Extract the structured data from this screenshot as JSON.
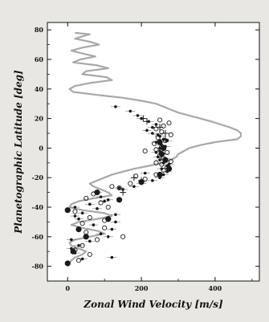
{
  "chart_data": {
    "type": "scatter",
    "title": "",
    "xlabel": "Zonal Wind Velocity [m/s]",
    "ylabel": "Planetographic Latitude [deg]",
    "xlim": [
      -55,
      520
    ],
    "ylim": [
      -90,
      85
    ],
    "x_ticks": [
      0,
      200,
      400
    ],
    "y_ticks": [
      80,
      60,
      40,
      20,
      0,
      -20,
      -40,
      -60,
      -80
    ],
    "grid": false,
    "legend": "none",
    "colors": {
      "profile": "#a8a8a8",
      "markers": "#1a1a1a",
      "frame": "#111111",
      "background": "#ffffff"
    },
    "profile": {
      "lat": [
        78,
        77,
        76,
        74,
        72,
        70,
        68,
        66,
        64,
        62,
        60,
        58,
        56,
        54,
        52,
        50,
        48,
        46,
        44,
        42,
        40,
        38,
        36,
        34,
        32,
        30,
        28,
        26,
        24,
        22,
        20,
        18,
        16,
        14,
        12,
        10,
        8,
        6,
        4,
        2,
        0,
        -2,
        -4,
        -6,
        -8,
        -10,
        -12,
        -14,
        -16,
        -18,
        -20,
        -22,
        -24,
        -26,
        -28,
        -30,
        -32,
        -34,
        -36,
        -38,
        -40,
        -42,
        -44,
        -46,
        -48,
        -50,
        -52,
        -54,
        -56,
        -58,
        -60,
        -62,
        -64,
        -66,
        -68,
        -70,
        -72,
        -74,
        -76,
        -78,
        -80
      ],
      "u": [
        20,
        60,
        45,
        20,
        60,
        85,
        40,
        10,
        40,
        75,
        35,
        15,
        80,
        110,
        50,
        40,
        105,
        120,
        60,
        20,
        5,
        15,
        80,
        150,
        200,
        240,
        260,
        280,
        300,
        330,
        360,
        390,
        415,
        440,
        460,
        470,
        470,
        460,
        400,
        360,
        330,
        315,
        300,
        295,
        280,
        260,
        220,
        180,
        150,
        120,
        100,
        80,
        60,
        70,
        90,
        110,
        120,
        70,
        30,
        10,
        5,
        40,
        100,
        120,
        80,
        30,
        10,
        40,
        80,
        100,
        60,
        20,
        5,
        10,
        30,
        50,
        40,
        20,
        10,
        5,
        0
      ]
    },
    "series": [
      {
        "marker": "dot",
        "lat": [
          -75,
          -71,
          -68,
          -63,
          -58,
          -52,
          -48,
          -46,
          -44,
          -41,
          -38,
          -35,
          -33,
          -30,
          -28,
          -26,
          -24,
          -22,
          -20,
          -18,
          -16,
          -14,
          -12,
          -10,
          -8,
          -6,
          -4,
          -2,
          0,
          2,
          4,
          6,
          8,
          10,
          12,
          14,
          16,
          18,
          20,
          22,
          25,
          28,
          -66,
          -60,
          -55,
          -45,
          -40,
          -27,
          -17,
          -11,
          -7,
          -3,
          1,
          5,
          9,
          -74,
          -62,
          -50,
          -36
        ],
        "u": [
          40,
          20,
          10,
          60,
          90,
          70,
          30,
          20,
          40,
          80,
          60,
          110,
          90,
          80,
          150,
          180,
          200,
          230,
          250,
          260,
          270,
          255,
          270,
          260,
          250,
          245,
          260,
          250,
          250,
          255,
          240,
          260,
          250,
          230,
          215,
          230,
          240,
          220,
          200,
          190,
          170,
          130,
          30,
          110,
          120,
          130,
          20,
          140,
          210,
          275,
          265,
          240,
          265,
          270,
          245,
          120,
          10,
          130,
          100
        ]
      },
      {
        "marker": "open-circle",
        "lat": [
          -76,
          -72,
          -69,
          -66,
          -62,
          -57,
          -54,
          -51,
          -47,
          -43,
          -40,
          -37,
          -34,
          -31,
          -27,
          -24,
          -21,
          -18,
          -15,
          -13,
          -11,
          -9,
          -7,
          -5,
          -3,
          -1,
          1,
          3,
          5,
          7,
          9,
          11,
          13,
          15,
          17,
          19,
          -60,
          -49,
          -26,
          -19,
          -10,
          -2
        ],
        "u": [
          30,
          60,
          20,
          40,
          80,
          50,
          100,
          40,
          60,
          20,
          110,
          90,
          50,
          70,
          140,
          170,
          210,
          240,
          260,
          270,
          255,
          280,
          260,
          250,
          270,
          240,
          255,
          235,
          265,
          245,
          280,
          255,
          240,
          260,
          275,
          250,
          150,
          100,
          120,
          185,
          240,
          210
        ]
      },
      {
        "marker": "large-dot",
        "lat": [
          -30,
          -42,
          -55,
          -70,
          -78,
          -48,
          -60,
          -18,
          -14,
          -8,
          -4,
          0,
          4,
          -23,
          -35
        ],
        "u": [
          80,
          0,
          30,
          15,
          0,
          110,
          50,
          250,
          275,
          265,
          255,
          260,
          250,
          200,
          140
        ]
      },
      {
        "marker": "plus",
        "lat": [
          20,
          18,
          14,
          10,
          6,
          -20,
          -22,
          -30
        ],
        "u": [
          205,
          215,
          250,
          265,
          265,
          180,
          200,
          150
        ]
      }
    ]
  }
}
